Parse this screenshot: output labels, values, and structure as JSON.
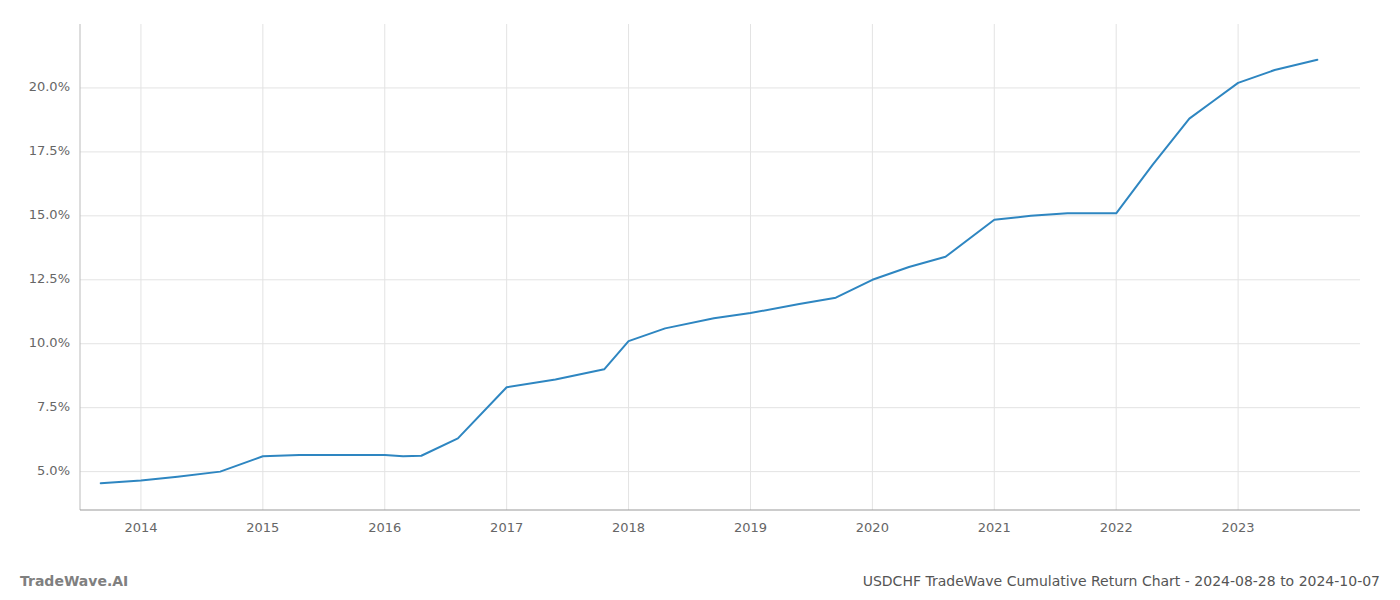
{
  "chart_data": {
    "type": "line",
    "title": "USDCHF TradeWave Cumulative Return Chart - 2024-08-28 to 2024-10-07",
    "annotations": [
      "TradeWave.AI"
    ],
    "x": [
      2013.67,
      2014.0,
      2014.3,
      2014.65,
      2015.0,
      2015.3,
      2015.7,
      2016.0,
      2016.15,
      2016.3,
      2016.6,
      2017.0,
      2017.4,
      2017.8,
      2018.0,
      2018.3,
      2018.7,
      2019.0,
      2019.4,
      2019.7,
      2020.0,
      2020.3,
      2020.6,
      2021.0,
      2021.3,
      2021.6,
      2022.0,
      2022.3,
      2022.6,
      2022.8,
      2023.0,
      2023.3,
      2023.65
    ],
    "values": [
      4.55,
      4.65,
      4.8,
      5.0,
      5.6,
      5.65,
      5.65,
      5.65,
      5.6,
      5.62,
      6.3,
      8.3,
      8.6,
      9.0,
      10.1,
      10.6,
      11.0,
      11.2,
      11.55,
      11.8,
      12.5,
      13.0,
      13.4,
      14.85,
      15.0,
      15.1,
      15.1,
      17.0,
      18.8,
      19.5,
      20.2,
      20.7,
      21.1
    ],
    "color": "#2e86c1",
    "xlim": [
      2013.5,
      2024.0
    ],
    "ylim": [
      3.5,
      22.5
    ],
    "xticks": [
      2014,
      2015,
      2016,
      2017,
      2018,
      2019,
      2020,
      2021,
      2022,
      2023
    ],
    "yticks": [
      {
        "value": 5.0,
        "label": "5.0%"
      },
      {
        "value": 7.5,
        "label": "7.5%"
      },
      {
        "value": 10.0,
        "label": "10.0%"
      },
      {
        "value": 12.5,
        "label": "12.5%"
      },
      {
        "value": 15.0,
        "label": "15.0%"
      },
      {
        "value": 17.5,
        "label": "17.5%"
      },
      {
        "value": 20.0,
        "label": "20.0%"
      }
    ],
    "grid": true
  }
}
